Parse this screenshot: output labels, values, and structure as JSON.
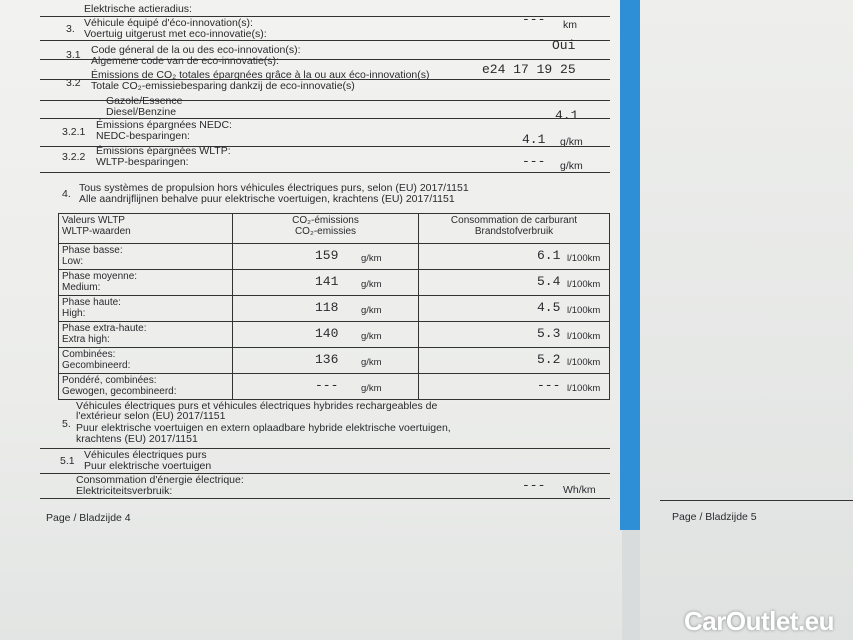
{
  "left_page": {
    "top_row": {
      "label_nl": "Elektrische actieradius:"
    },
    "s3": {
      "num": "3.",
      "fr": "Véhicule équipé d'éco-innovation(s):",
      "nl": "Voertuig uitgerust met eco-innovatie(s):",
      "value": "---",
      "unit": "km",
      "answer": "Oui"
    },
    "s31": {
      "num": "3.1",
      "fr": "Code géneral de la ou des eco-innovation(s):",
      "nl": "Algemene code van de eco-innovatie(s):",
      "value": "e24 17 19 25"
    },
    "s32": {
      "num": "3.2",
      "fr": "Émissions de CO₂ totales épargnées grâce à la ou aux éco-innovation(s)",
      "nl": "Totale CO₂-emissiebesparing dankzij de eco-innovatie(s)",
      "fuel_fr": "Gazole/Essence",
      "fuel_nl": "Diesel/Benzine",
      "value": "4.1"
    },
    "s321": {
      "num": "3.2.1",
      "fr": "Émissions épargnées NEDC:",
      "nl": "NEDC-besparingen:",
      "value": "4.1",
      "unit": "g/km"
    },
    "s322": {
      "num": "3.2.2",
      "fr": "Émissions épargnées WLTP:",
      "nl": "WLTP-besparingen:",
      "value": "---",
      "unit": "g/km"
    },
    "s4": {
      "num": "4.",
      "fr": "Tous systèmes de propulsion hors véhicules électriques purs, selon (EU) 2017/1151",
      "nl": "Alle aandrijflijnen behalve puur elektrische voertuigen, krachtens (EU) 2017/1151"
    },
    "table": {
      "headers": [
        {
          "fr": "Valeurs WLTP",
          "nl": "WLTP-waarden"
        },
        {
          "fr": "CO₂-émissions",
          "nl": "CO₂-emissies"
        },
        {
          "fr": "Consommation de carburant",
          "nl": "Brandstofverbruik"
        }
      ],
      "rows": [
        {
          "fr": "Phase basse:",
          "nl": "Low:",
          "co2": "159",
          "co2_unit": "g/km",
          "fuel": "6.1",
          "fuel_unit": "l/100km"
        },
        {
          "fr": "Phase moyenne:",
          "nl": "Medium:",
          "co2": "141",
          "co2_unit": "g/km",
          "fuel": "5.4",
          "fuel_unit": "l/100km"
        },
        {
          "fr": "Phase haute:",
          "nl": "High:",
          "co2": "118",
          "co2_unit": "g/km",
          "fuel": "4.5",
          "fuel_unit": "l/100km"
        },
        {
          "fr": "Phase extra-haute:",
          "nl": "Extra high:",
          "co2": "140",
          "co2_unit": "g/km",
          "fuel": "5.3",
          "fuel_unit": "l/100km"
        },
        {
          "fr": "Combinées:",
          "nl": "Gecombineerd:",
          "co2": "136",
          "co2_unit": "g/km",
          "fuel": "5.2",
          "fuel_unit": "l/100km"
        },
        {
          "fr": "Pondéré, combinées:",
          "nl": "Gewogen, gecombineerd:",
          "co2": "---",
          "co2_unit": "g/km",
          "fuel": "---",
          "fuel_unit": "l/100km"
        }
      ]
    },
    "s5": {
      "num": "5.",
      "fr1": "Véhicules électriques purs et véhicules électriques hybrides rechargeables de",
      "fr2": "l'extérieur selon (EU) 2017/1151",
      "nl1": "Puur elektrische voertuigen en extern oplaadbare hybride elektrische voertuigen,",
      "nl2": "krachtens (EU) 2017/1151"
    },
    "s51": {
      "num": "5.1",
      "fr": "Véhicules électriques purs",
      "nl": "Puur elektrische voertuigen"
    },
    "elec": {
      "fr": "Consommation d'énergie électrique:",
      "nl": "Elektriciteitsverbruik:",
      "value": "---",
      "unit": "Wh/km"
    },
    "footer": "Page / Bladzijde 4"
  },
  "right_page": {
    "footer": "Page / Bladzijde 5"
  },
  "watermark": "CarOutlet.eu",
  "colors": {
    "blue_strip": "#2e8ed6"
  }
}
